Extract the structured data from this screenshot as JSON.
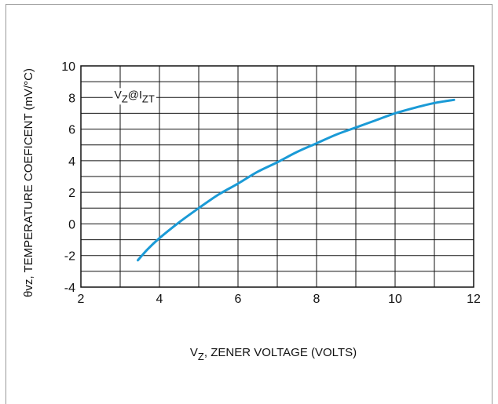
{
  "chart_data": {
    "type": "line",
    "xlabel": "V",
    "xlabel_sub": "Z",
    "xlabel_rest": ", ZENER VOLTAGE (VOLTS)",
    "ylabel": "θvz, TEMPERATURE COEFICENT (mV/°C)",
    "annotation": {
      "v": "V",
      "z_sub": "Z",
      "at": "@I",
      "zt_sub": "ZT"
    },
    "xlim": [
      2,
      12
    ],
    "ylim": [
      -4,
      10
    ],
    "x_ticks": [
      "2",
      "4",
      "6",
      "8",
      "10",
      "12"
    ],
    "y_ticks": [
      "-4",
      "-2",
      "0",
      "2",
      "4",
      "6",
      "8",
      "10"
    ],
    "grid": true,
    "line_color": "#1a9ad6",
    "series": [
      {
        "x": [
          3.45,
          3.7,
          4.0,
          4.5,
          5.0,
          5.5,
          6.0,
          6.5,
          7.0,
          7.5,
          8.0,
          8.5,
          9.0,
          9.5,
          10.0,
          10.5,
          11.0,
          11.5
        ],
        "values": [
          -2.3,
          -1.6,
          -0.9,
          0.1,
          1.0,
          1.85,
          2.55,
          3.3,
          3.9,
          4.55,
          5.1,
          5.65,
          6.1,
          6.55,
          7.0,
          7.35,
          7.65,
          7.85
        ]
      }
    ]
  }
}
